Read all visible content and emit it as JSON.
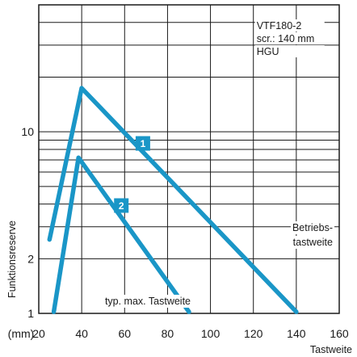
{
  "chart_data": {
    "type": "line",
    "xlabel": "Tastweite",
    "xunit": "(mm)",
    "ylabel": "Funktionsreserve",
    "y_scale": "log",
    "xlim": [
      20,
      160
    ],
    "ylim": [
      1,
      50
    ],
    "x_ticks": [
      20,
      40,
      60,
      80,
      100,
      120,
      140,
      160
    ],
    "x_tick_labels": [
      "20",
      "40",
      "60",
      "80",
      "100",
      "120",
      "140",
      "160"
    ],
    "y_ticks": [
      {
        "value": 1,
        "label": "1"
      },
      {
        "value": 2,
        "label": "2"
      },
      {
        "value": 10,
        "label": "10"
      }
    ],
    "grid": true,
    "legend_box": [
      "VTF180-2",
      "scr.: 140 mm",
      "HGU"
    ],
    "annotations": {
      "betriebs": [
        "Betriebs-",
        "tastweite"
      ],
      "typmax": "typ. max. Tastweite"
    },
    "series": [
      {
        "marker": "1",
        "color": "#1a96c7",
        "x": [
          25,
          40,
          140
        ],
        "y": [
          2.55,
          17.4,
          1.02
        ]
      },
      {
        "marker": "2",
        "color": "#1a96c7",
        "x": [
          27,
          38.5,
          90
        ],
        "y": [
          1.02,
          7.2,
          1.02
        ]
      }
    ]
  }
}
